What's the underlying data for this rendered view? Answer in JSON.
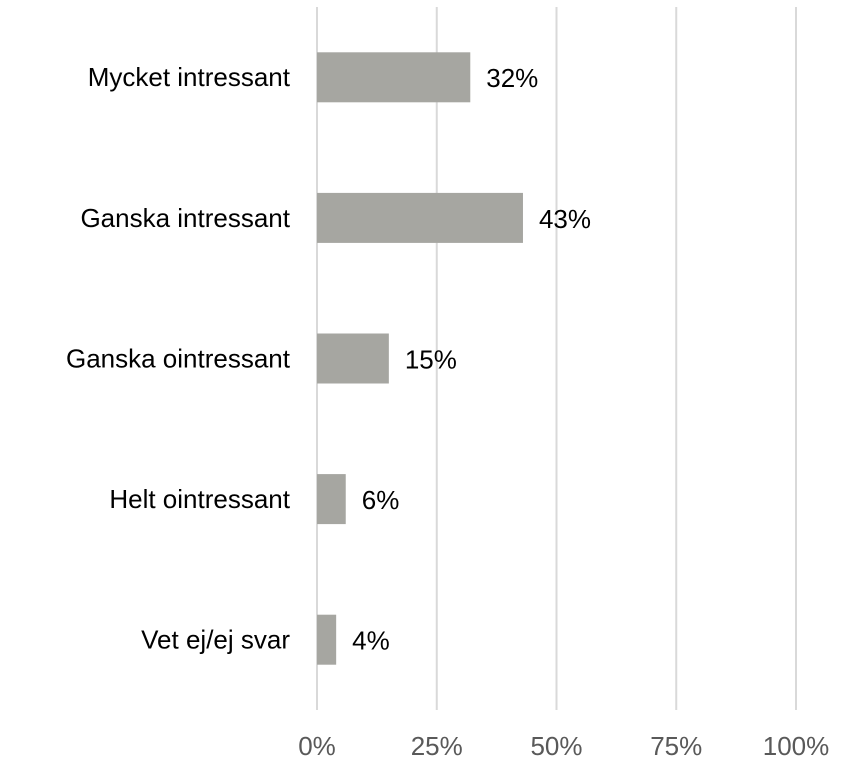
{
  "chart_data": {
    "type": "bar",
    "orientation": "horizontal",
    "categories": [
      "Mycket intressant",
      "Ganska intressant",
      "Ganska ointressant",
      "Helt ointressant",
      "Vet ej/ej svar"
    ],
    "values": [
      32,
      43,
      15,
      6,
      4
    ],
    "value_labels": [
      "32%",
      "43%",
      "15%",
      "6%",
      "4%"
    ],
    "color": "#a6a6a1",
    "xlim": [
      0,
      100
    ],
    "xticks": [
      {
        "value": 0,
        "label": "0%"
      },
      {
        "value": 25,
        "label": "25%"
      },
      {
        "value": 50,
        "label": "50%"
      },
      {
        "value": 75,
        "label": "75%"
      },
      {
        "value": 100,
        "label": "100%"
      }
    ],
    "grid": true
  }
}
